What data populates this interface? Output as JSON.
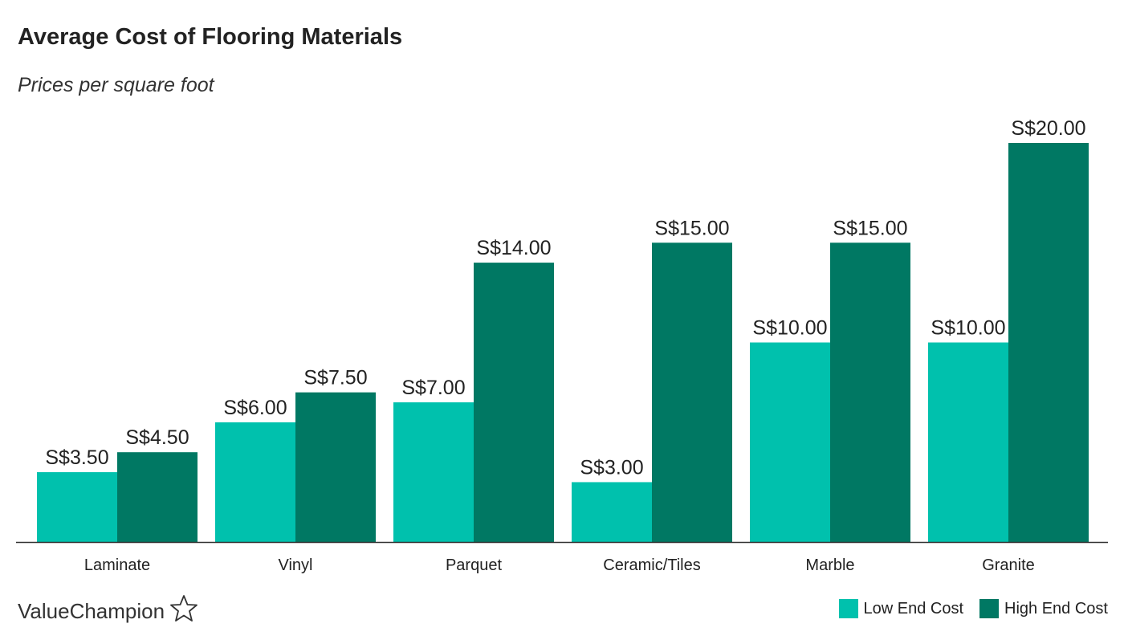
{
  "title": "Average Cost of Flooring Materials",
  "subtitle": "Prices per square foot",
  "brand": "ValueChampion",
  "colors": {
    "low": "#00c1ad",
    "high": "#007863",
    "axis": "#333333",
    "text": "#222222"
  },
  "legend": [
    {
      "label": "Low End Cost",
      "color": "#00c1ad"
    },
    {
      "label": "High End Cost",
      "color": "#007863"
    }
  ],
  "chart_data": {
    "type": "bar",
    "title": "Average Cost of Flooring Materials",
    "subtitle": "Prices per square foot",
    "xlabel": "",
    "ylabel": "",
    "ylim": [
      0,
      20
    ],
    "grid": false,
    "legend_position": "bottom-right",
    "categories": [
      "Laminate",
      "Vinyl",
      "Parquet",
      "Ceramic/Tiles",
      "Marble",
      "Granite"
    ],
    "series": [
      {
        "name": "Low End Cost",
        "color": "#00c1ad",
        "values": [
          3.5,
          6.0,
          7.0,
          3.0,
          10.0,
          10.0
        ],
        "labels": [
          "S$3.50",
          "S$6.00",
          "S$7.00",
          "S$3.00",
          "S$10.00",
          "S$10.00"
        ]
      },
      {
        "name": "High End Cost",
        "color": "#007863",
        "values": [
          4.5,
          7.5,
          14.0,
          15.0,
          15.0,
          20.0
        ],
        "labels": [
          "S$4.50",
          "S$7.50",
          "S$14.00",
          "S$15.00",
          "S$15.00",
          "S$20.00"
        ]
      }
    ]
  }
}
